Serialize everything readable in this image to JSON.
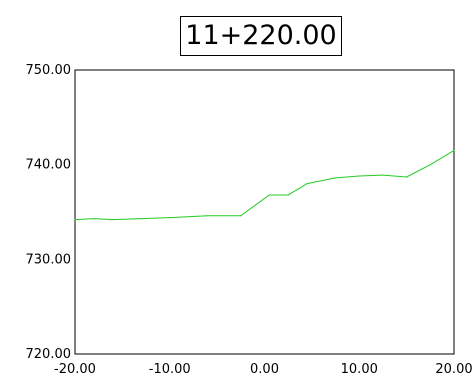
{
  "chart_data": {
    "type": "line",
    "title": "11+220.00",
    "xlim": [
      -20,
      20
    ],
    "ylim": [
      720,
      750
    ],
    "x_ticks": [
      "-20.00",
      "-10.00",
      "0.00",
      "10.00",
      "20.00"
    ],
    "y_ticks": [
      "750.00",
      "740.00",
      "730.00",
      "720.00"
    ],
    "grid": false,
    "series": [
      {
        "color": "#22cc22",
        "x": [
          -20,
          -18,
          -16,
          -10,
          -6,
          -2.5,
          0.5,
          2.5,
          4.5,
          7.5,
          10,
          12.5,
          15,
          17.5,
          20
        ],
        "y": [
          734.2,
          734.3,
          734.2,
          734.4,
          734.6,
          734.6,
          736.8,
          736.8,
          738.0,
          738.6,
          738.8,
          738.9,
          738.7,
          740.0,
          741.5
        ]
      }
    ]
  }
}
